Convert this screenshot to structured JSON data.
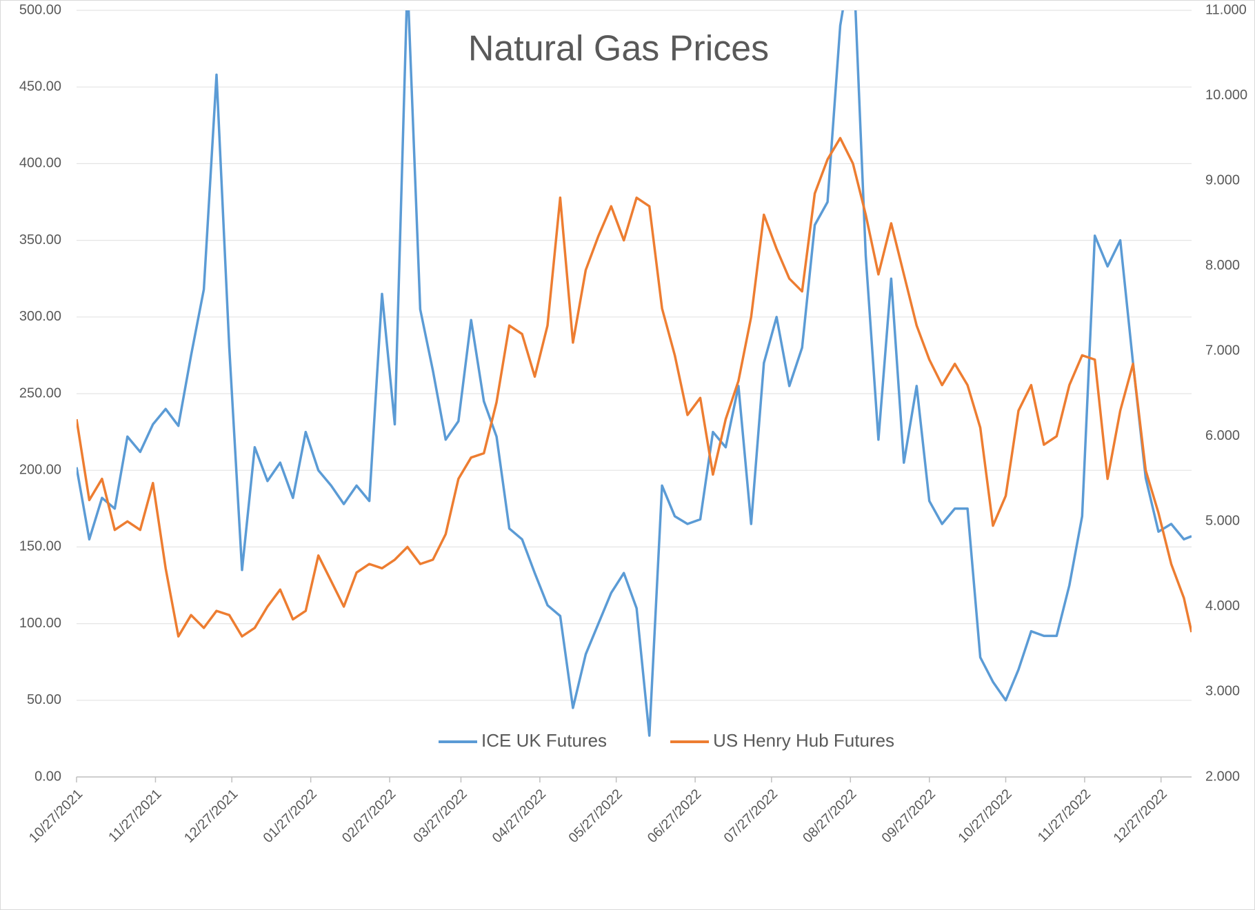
{
  "chart_data": {
    "type": "line",
    "title": "Natural Gas Prices",
    "x": [
      "10/27/2021",
      "11/01/2021",
      "11/06/2021",
      "11/11/2021",
      "11/16/2021",
      "11/21/2021",
      "11/26/2021",
      "12/01/2021",
      "12/06/2021",
      "12/11/2021",
      "12/16/2021",
      "12/21/2021",
      "12/26/2021",
      "12/31/2021",
      "01/05/2022",
      "01/10/2022",
      "01/15/2022",
      "01/20/2022",
      "01/25/2022",
      "01/30/2022",
      "02/04/2022",
      "02/09/2022",
      "02/14/2022",
      "02/19/2022",
      "02/24/2022",
      "03/01/2022",
      "03/06/2022",
      "03/11/2022",
      "03/16/2022",
      "03/21/2022",
      "03/26/2022",
      "03/31/2022",
      "04/05/2022",
      "04/10/2022",
      "04/15/2022",
      "04/20/2022",
      "04/25/2022",
      "04/30/2022",
      "05/05/2022",
      "05/10/2022",
      "05/15/2022",
      "05/20/2022",
      "05/25/2022",
      "05/30/2022",
      "06/04/2022",
      "06/09/2022",
      "06/14/2022",
      "06/19/2022",
      "06/24/2022",
      "06/29/2022",
      "07/04/2022",
      "07/09/2022",
      "07/14/2022",
      "07/19/2022",
      "07/24/2022",
      "07/29/2022",
      "08/03/2022",
      "08/08/2022",
      "08/13/2022",
      "08/18/2022",
      "08/23/2022",
      "08/28/2022",
      "09/02/2022",
      "09/07/2022",
      "09/12/2022",
      "09/17/2022",
      "09/22/2022",
      "09/27/2022",
      "10/02/2022",
      "10/07/2022",
      "10/12/2022",
      "10/17/2022",
      "10/22/2022",
      "10/27/2022",
      "11/01/2022",
      "11/06/2022",
      "11/11/2022",
      "11/16/2022",
      "11/21/2022",
      "11/26/2022",
      "12/01/2022",
      "12/06/2022",
      "12/11/2022",
      "12/16/2022",
      "12/21/2022",
      "12/26/2022",
      "12/31/2022",
      "01/05/2023",
      "01/08/2023"
    ],
    "series": [
      {
        "name": "ICE UK Futures",
        "color": "#5b9bd5",
        "axis": "y",
        "values": [
          202,
          155,
          182,
          175,
          222,
          212,
          230,
          240,
          229,
          275,
          318,
          458,
          280,
          135,
          215,
          193,
          205,
          182,
          225,
          200,
          190,
          178,
          190,
          180,
          315,
          230,
          520,
          305,
          265,
          220,
          232,
          298,
          245,
          222,
          162,
          155,
          133,
          112,
          105,
          45,
          80,
          100,
          120,
          133,
          110,
          27,
          190,
          170,
          165,
          168,
          225,
          215,
          255,
          165,
          270,
          300,
          255,
          280,
          360,
          375,
          490,
          540,
          340,
          220,
          325,
          205,
          255,
          180,
          165,
          175,
          175,
          78,
          62,
          50,
          70,
          95,
          92,
          92,
          125,
          170,
          353,
          333,
          350,
          270,
          195,
          160,
          165,
          155,
          157
        ]
      },
      {
        "name": "US Henry Hub Futures",
        "color": "#ed7d31",
        "axis": "y2",
        "values": [
          6.2,
          5.25,
          5.5,
          4.9,
          5.0,
          4.9,
          5.45,
          4.45,
          3.65,
          3.9,
          3.75,
          3.95,
          3.9,
          3.65,
          3.75,
          4.0,
          4.2,
          3.85,
          3.95,
          4.6,
          4.3,
          4.0,
          4.4,
          4.5,
          4.45,
          4.55,
          4.7,
          4.5,
          4.55,
          4.85,
          5.5,
          5.75,
          5.8,
          6.4,
          7.3,
          7.2,
          6.7,
          7.3,
          8.8,
          7.1,
          7.95,
          8.35,
          8.7,
          8.3,
          8.8,
          8.7,
          7.5,
          6.95,
          6.25,
          6.45,
          5.55,
          6.2,
          6.65,
          7.4,
          8.6,
          8.2,
          7.85,
          7.7,
          8.85,
          9.25,
          9.5,
          9.2,
          8.6,
          7.9,
          8.5,
          7.9,
          7.3,
          6.9,
          6.6,
          6.85,
          6.6,
          6.1,
          4.95,
          5.3,
          6.3,
          6.6,
          5.9,
          6.0,
          6.6,
          6.95,
          6.9,
          5.5,
          6.3,
          6.85,
          5.6,
          5.1,
          4.5,
          4.1,
          3.7
        ]
      }
    ],
    "xlim": [
      "10/27/2021",
      "01/08/2023"
    ],
    "xticks": [
      "10/27/2021",
      "11/27/2021",
      "12/27/2021",
      "01/27/2022",
      "02/27/2022",
      "03/27/2022",
      "04/27/2022",
      "05/27/2022",
      "06/27/2022",
      "07/27/2022",
      "08/27/2022",
      "09/27/2022",
      "10/27/2022",
      "11/27/2022",
      "12/27/2022"
    ],
    "ylim": [
      0,
      500
    ],
    "yticks": [
      {
        "value": 0,
        "label": "0.00"
      },
      {
        "value": 50,
        "label": "50.00"
      },
      {
        "value": 100,
        "label": "100.00"
      },
      {
        "value": 150,
        "label": "150.00"
      },
      {
        "value": 200,
        "label": "200.00"
      },
      {
        "value": 250,
        "label": "250.00"
      },
      {
        "value": 300,
        "label": "300.00"
      },
      {
        "value": 350,
        "label": "350.00"
      },
      {
        "value": 400,
        "label": "400.00"
      },
      {
        "value": 450,
        "label": "450.00"
      },
      {
        "value": 500,
        "label": "500.00"
      }
    ],
    "y2lim": [
      2,
      11
    ],
    "y2ticks": [
      {
        "value": 2,
        "label": "2.000"
      },
      {
        "value": 3,
        "label": "3.000"
      },
      {
        "value": 4,
        "label": "4.000"
      },
      {
        "value": 5,
        "label": "5.000"
      },
      {
        "value": 6,
        "label": "6.000"
      },
      {
        "value": 7,
        "label": "7.000"
      },
      {
        "value": 8,
        "label": "8.000"
      },
      {
        "value": 9,
        "label": "9.000"
      },
      {
        "value": 10,
        "label": "10.000"
      },
      {
        "value": 11,
        "label": "11.000"
      }
    ],
    "grid": true,
    "legend": "bottom"
  }
}
